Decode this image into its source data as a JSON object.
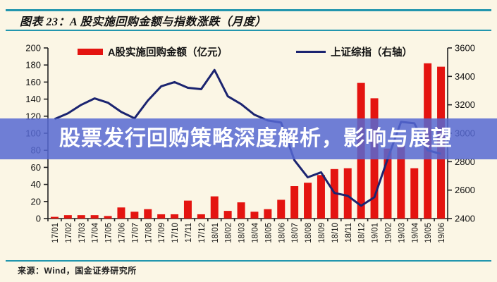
{
  "header": {
    "title": "图表 23：A 股实施回购金额与指数涨跌（月度）"
  },
  "watermark": {
    "text": "股票发行回购策略深度解析，影响与展望"
  },
  "footer": {
    "source": "来源：Wind，国金证券研究所"
  },
  "colors": {
    "background": "#FBF6E5",
    "accent_teal": "#2296AE",
    "bar_red": "#E41410",
    "line_navy": "#1B2470",
    "watermark_blue": "#5668D2",
    "axis_black": "#222222"
  },
  "chart_data": {
    "type": "bar",
    "subtype": "bar+line combo, dual axis",
    "title": "A 股实施回购金额与指数涨跌（月度）",
    "grid": false,
    "legend_position": "top",
    "categories": [
      "17/01",
      "17/02",
      "17/03",
      "17/04",
      "17/05",
      "17/06",
      "17/07",
      "17/08",
      "17/09",
      "17/10",
      "17/11",
      "17/12",
      "18/01",
      "18/02",
      "18/03",
      "18/04",
      "18/05",
      "18/06",
      "18/07",
      "18/08",
      "18/09",
      "18/10",
      "18/11",
      "18/12",
      "19/01",
      "19/02",
      "19/03",
      "19/04",
      "19/05",
      "19/06"
    ],
    "series": [
      {
        "name": "A股实施回购金额（亿元）",
        "type": "bar",
        "axis": "left",
        "color": "#E41410",
        "values": [
          2,
          4,
          4,
          4,
          3,
          13,
          8,
          11,
          5,
          5,
          21,
          5,
          26,
          9,
          19,
          8,
          11,
          22,
          38,
          42,
          51,
          58,
          59,
          159,
          141,
          82,
          85,
          59,
          182,
          178
        ]
      },
      {
        "name": "上证综指（右轴）",
        "type": "line",
        "axis": "right",
        "color": "#1B2470",
        "values": [
          3100,
          3140,
          3200,
          3245,
          3215,
          3150,
          3105,
          3230,
          3330,
          3360,
          3320,
          3310,
          3445,
          3260,
          3205,
          3130,
          3090,
          3075,
          2810,
          2690,
          2725,
          2580,
          2560,
          2490,
          2550,
          2820,
          3080,
          3070,
          2880,
          2855
        ]
      }
    ],
    "left_axis": {
      "min": 0,
      "max": 200,
      "step": 20,
      "tick_labels": [
        "0",
        "20",
        "40",
        "60",
        "80",
        "100",
        "120",
        "140",
        "160",
        "180",
        "200"
      ]
    },
    "right_axis": {
      "min": 2400,
      "max": 3600,
      "step": 200,
      "tick_labels": [
        "2400",
        "2600",
        "2800",
        "3000",
        "3200",
        "3400",
        "3600"
      ]
    }
  }
}
